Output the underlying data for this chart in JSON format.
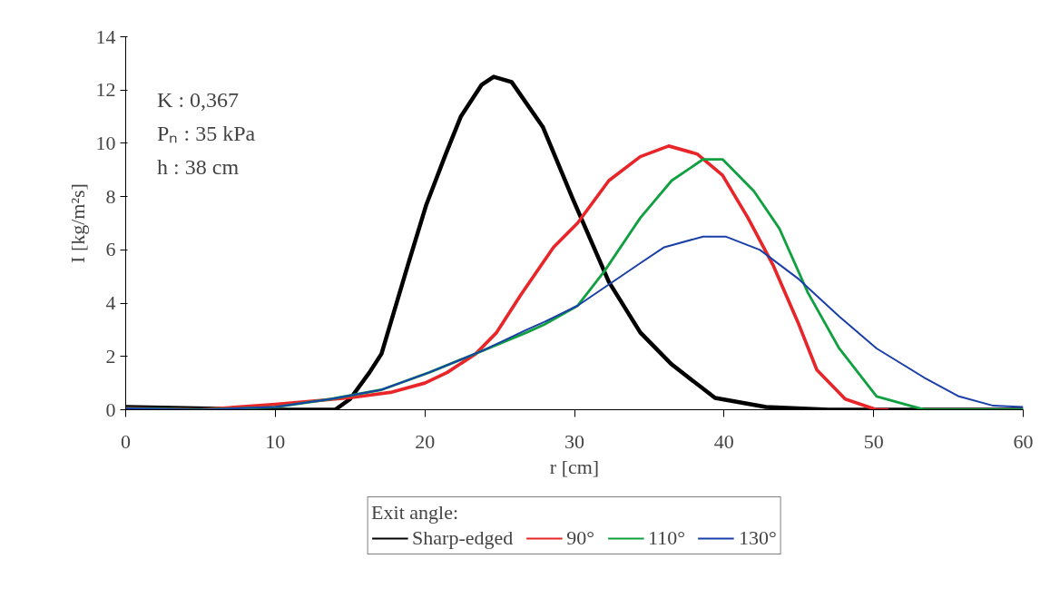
{
  "chart_data": {
    "type": "line",
    "xlabel": "r [cm]",
    "ylabel": "I [kg/m²s]",
    "legend_title": "Exit angle:",
    "xlim": [
      0,
      60
    ],
    "ylim": [
      0,
      14
    ],
    "xticks": [
      0,
      10,
      20,
      30,
      40,
      50,
      60
    ],
    "yticks": [
      0,
      2,
      4,
      6,
      8,
      10,
      12,
      14
    ],
    "grid": false,
    "legend": "bottom",
    "marker": "none",
    "line_style": "solid",
    "annotations": [
      "K  : 0,367",
      "Pₙ : 35 kPa",
      "h  : 38 cm"
    ],
    "series": [
      {
        "name": "Sharp-edged",
        "color": "#000000",
        "x": [
          0,
          10,
          14,
          15,
          16.3,
          17.1,
          18.9,
          20.1,
          21.4,
          22.4,
          23.8,
          24.6,
          25.8,
          27.9,
          29.9,
          32.3,
          34.4,
          36.5,
          39.4,
          42.8,
          47,
          50,
          55,
          60
        ],
        "values": [
          0.1,
          0,
          0,
          0.4,
          1.4,
          2.1,
          5.5,
          7.7,
          9.6,
          11.0,
          12.2,
          12.5,
          12.3,
          10.6,
          7.9,
          4.8,
          2.9,
          1.7,
          0.44,
          0.1,
          0,
          0,
          0,
          0
        ]
      },
      {
        "name": "90°",
        "color": "#e8262a",
        "x": [
          0,
          5,
          10,
          13,
          15,
          17.7,
          20,
          21.5,
          23.4,
          24.8,
          26.4,
          28.6,
          30.2,
          32.3,
          34.4,
          36.3,
          38.2,
          39.9,
          41.6,
          43.3,
          45.0,
          46.2,
          48.1,
          50.2,
          51
        ],
        "values": [
          0.05,
          0,
          0.2,
          0.35,
          0.45,
          0.65,
          1.0,
          1.4,
          2.1,
          2.9,
          4.3,
          6.1,
          7.0,
          8.6,
          9.5,
          9.9,
          9.6,
          8.8,
          7.2,
          5.4,
          3.2,
          1.5,
          0.4,
          0,
          0
        ]
      },
      {
        "name": "110°",
        "color": "#10a040",
        "x": [
          0,
          5,
          10,
          13.7,
          17.1,
          20.3,
          23.8,
          26.8,
          28,
          30.2,
          32,
          34.4,
          36.5,
          38.6,
          39.9,
          42,
          43.7,
          45.6,
          47.7,
          50.2,
          53.4,
          56,
          60
        ],
        "values": [
          0.05,
          0,
          0.1,
          0.4,
          0.75,
          1.4,
          2.2,
          2.9,
          3.2,
          3.9,
          5.2,
          7.2,
          8.6,
          9.4,
          9.4,
          8.2,
          6.8,
          4.4,
          2.3,
          0.5,
          0,
          0,
          0
        ]
      },
      {
        "name": "130°",
        "color": "#1a3fa8",
        "x": [
          0,
          5,
          10,
          13.7,
          17.1,
          20.3,
          23.8,
          26.8,
          28,
          30.2,
          32.3,
          34.4,
          36,
          38.6,
          40.1,
          42.4,
          45,
          47.7,
          50.2,
          53.4,
          55.7,
          58,
          60
        ],
        "values": [
          0.05,
          0,
          0.1,
          0.4,
          0.75,
          1.4,
          2.2,
          3.0,
          3.3,
          3.9,
          4.7,
          5.5,
          6.1,
          6.5,
          6.5,
          6.0,
          4.9,
          3.5,
          2.3,
          1.2,
          0.5,
          0.15,
          0.1
        ]
      }
    ]
  }
}
